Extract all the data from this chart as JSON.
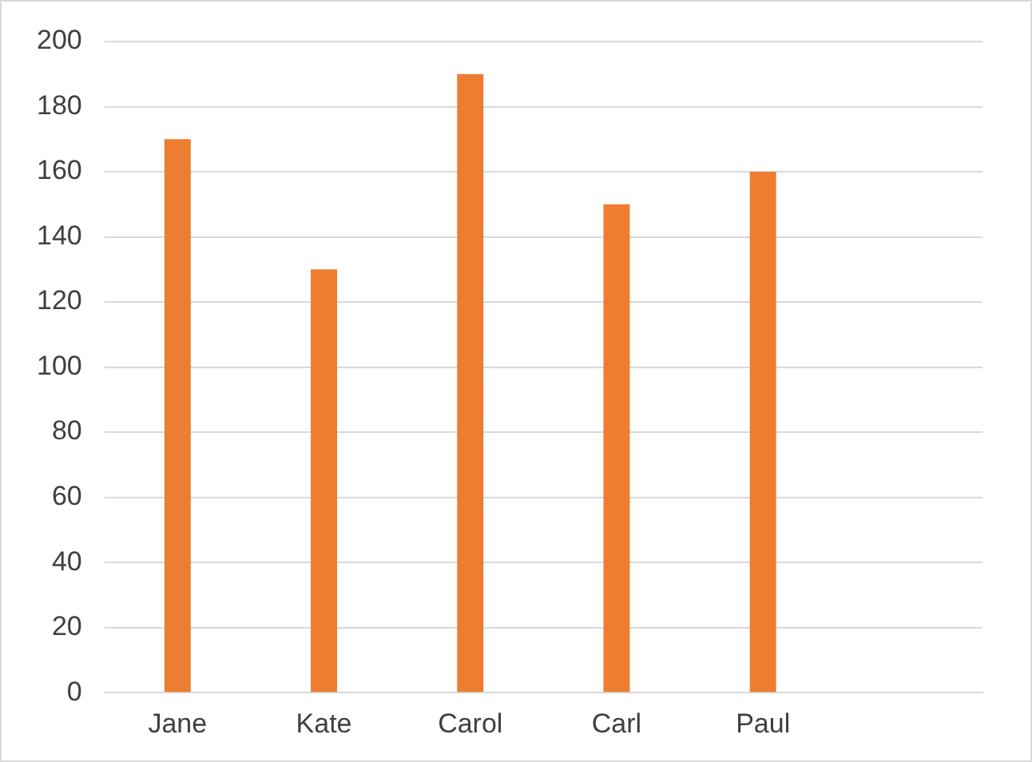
{
  "chart_data": {
    "type": "bar",
    "categories": [
      "Jane",
      "Kate",
      "Carol",
      "Carl",
      "Paul",
      null
    ],
    "values": [
      170,
      130,
      190,
      150,
      160,
      null
    ],
    "color": "#ed7d31",
    "ylim": [
      0,
      200
    ],
    "yticks": [
      0,
      20,
      40,
      60,
      80,
      100,
      120,
      140,
      160,
      180,
      200
    ],
    "grid": "y"
  }
}
